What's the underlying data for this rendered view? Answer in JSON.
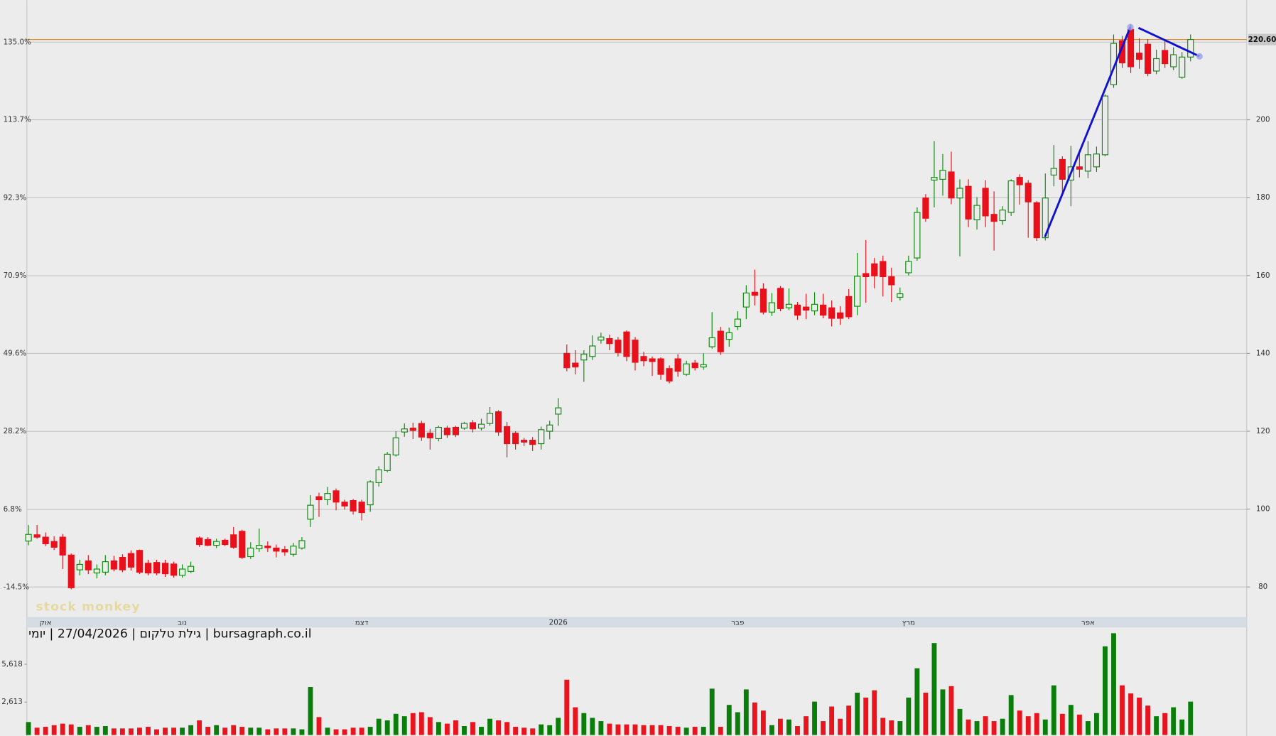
{
  "chart_data": {
    "type": "candlestick",
    "subtitle": "bursagraph.co.il | גילת טלקום | 27/04/2026 | יומי",
    "watermark": "stock monkey",
    "categories": [
      null,
      null,
      "אוק",
      null,
      null,
      null,
      null,
      null,
      null,
      null,
      null,
      null,
      null,
      null,
      null,
      null,
      null,
      null,
      "נוב",
      null,
      null,
      null,
      null,
      null,
      null,
      null,
      null,
      null,
      null,
      null,
      null,
      null,
      null,
      null,
      null,
      null,
      null,
      null,
      null,
      "דצמ",
      null,
      null,
      null,
      null,
      null,
      null,
      null,
      null,
      null,
      null,
      null,
      null,
      null,
      null,
      null,
      null,
      null,
      null,
      null,
      null,
      null,
      null,
      "2026",
      null,
      null,
      null,
      null,
      null,
      null,
      null,
      null,
      null,
      null,
      null,
      null,
      null,
      null,
      null,
      null,
      null,
      null,
      null,
      null,
      "פבר",
      null,
      null,
      null,
      null,
      null,
      null,
      null,
      null,
      null,
      null,
      null,
      null,
      null,
      null,
      null,
      null,
      null,
      null,
      null,
      "מרץ",
      null,
      null,
      null,
      null,
      null,
      null,
      null,
      null,
      null,
      null,
      null,
      null,
      null,
      null,
      null,
      null,
      null,
      null,
      null,
      null,
      "אפר",
      null,
      null,
      null,
      null,
      null,
      null,
      null,
      null,
      null,
      null,
      null,
      null
    ],
    "open": [
      91.8,
      93.4,
      92.8,
      91.7,
      92.8,
      88.2,
      84.4,
      86.7,
      83.6,
      83.8,
      86.7,
      87.6,
      88.6,
      89.4,
      86.1,
      86.3,
      86.1,
      85.9,
      83,
      84,
      92.6,
      92.2,
      90.7,
      92,
      93.4,
      94.3,
      87.8,
      89.8,
      90.5,
      90,
      89.6,
      88.4,
      90,
      97.4,
      103.2,
      102.4,
      104.7,
      101.8,
      102.2,
      101.8,
      101.1,
      106.8,
      109.9,
      113.9,
      119.8,
      120.8,
      122,
      119.5,
      118.1,
      120.8,
      121,
      120.8,
      122.2,
      120.8,
      122,
      125,
      121.2,
      119.5,
      117.7,
      117.7,
      116.8,
      120,
      124.4,
      140,
      137.5,
      138.3,
      139.2,
      143.4,
      143.8,
      143.4,
      145.5,
      143.4,
      139.2,
      138.6,
      138.6,
      136.1,
      138.6,
      134.6,
      137.5,
      136.5,
      141.7,
      145.7,
      143.6,
      146.9,
      151.9,
      155.7,
      156.5,
      150.6,
      156.7,
      151.7,
      152.4,
      151.9,
      150.9,
      152.4,
      151.7,
      150.4,
      154.6,
      152.1,
      160.5,
      163,
      163.6,
      159.7,
      154.4,
      160.7,
      164.5,
      179.9,
      184.5,
      184.7,
      186.6,
      179.9,
      182.9,
      174.3,
      182.4,
      175.7,
      174.1,
      176.2,
      185.2,
      183.7,
      178.7,
      169.7,
      185.8,
      189.8,
      184.5,
      187.9,
      186.8,
      187.9,
      191,
      209,
      220.3,
      223.2,
      217.1,
      219.4,
      212.5,
      217.8,
      213.6,
      210.9,
      216.1
    ],
    "high": [
      95.9,
      95.9,
      94,
      93,
      93.6,
      88.6,
      87,
      88.2,
      85.8,
      88.2,
      88,
      88.4,
      89.4,
      89.6,
      87,
      87,
      87,
      86.5,
      85.8,
      86.5,
      93,
      92.8,
      92.4,
      92.4,
      95.4,
      94.7,
      91.5,
      95,
      91.7,
      90.9,
      90.5,
      91.3,
      92.8,
      103.6,
      104.2,
      105.7,
      105.3,
      102.4,
      102.6,
      102.4,
      107.4,
      111,
      114.7,
      120,
      122,
      122.2,
      122.7,
      120.6,
      121.4,
      121.4,
      121.4,
      122.4,
      122.9,
      123.2,
      126.2,
      125.4,
      122.4,
      120,
      118.3,
      118.5,
      121.2,
      122.7,
      128.5,
      142.3,
      140.8,
      140.8,
      144.6,
      145.3,
      144.8,
      144.2,
      145.9,
      144.2,
      140.4,
      139.2,
      139,
      136.9,
      139.8,
      138.1,
      138.3,
      140,
      150.6,
      146.8,
      146.6,
      150.8,
      157.5,
      161.5,
      158,
      155.5,
      157.3,
      156.7,
      153.2,
      155.3,
      155.7,
      155.3,
      153.6,
      152.1,
      156.5,
      165.8,
      169.1,
      164.5,
      165.1,
      162,
      156.9,
      165.1,
      177.5,
      180.9,
      194.5,
      191.2,
      191.8,
      184.7,
      184.7,
      180.1,
      184.5,
      181.6,
      177.8,
      184.7,
      186,
      184.5,
      179.1,
      186.2,
      193.5,
      190.6,
      193.3,
      192.1,
      194.5,
      193.1,
      206.5,
      221.9,
      221.5,
      224.5,
      220.9,
      220.7,
      218,
      220.5,
      218.6,
      217.4,
      221.9
    ],
    "low": [
      90.7,
      92.4,
      90.5,
      89.5,
      84.6,
      79.4,
      83,
      83.3,
      82.2,
      83,
      84,
      83.8,
      84.2,
      83.3,
      83,
      83,
      82.6,
      82.4,
      82.4,
      83.6,
      90.3,
      90.5,
      90,
      90.5,
      89.8,
      87.2,
      87.2,
      89,
      89,
      87.6,
      88,
      87.8,
      89.6,
      95.4,
      98,
      101,
      99.7,
      99.9,
      98.6,
      97.1,
      99.3,
      105.8,
      109.5,
      113.5,
      118.6,
      118,
      117.5,
      115.3,
      117.4,
      118.3,
      118.5,
      120.4,
      119.7,
      120.2,
      121.4,
      118.8,
      113.3,
      115.3,
      116.2,
      114.9,
      115.3,
      117.9,
      121.4,
      135.4,
      134.6,
      132.7,
      138.3,
      142.5,
      140.8,
      139.2,
      138,
      135.6,
      136.7,
      134.2,
      133.2,
      132.3,
      134,
      134.2,
      135.6,
      135.8,
      141.2,
      139.6,
      141.7,
      146,
      148.8,
      152.3,
      150,
      149.6,
      150.8,
      151.1,
      148.6,
      148.8,
      149.8,
      149,
      146.9,
      147.3,
      148.8,
      149.8,
      153,
      156.7,
      154.6,
      153.2,
      153.6,
      160,
      163.8,
      173.8,
      177.5,
      180.5,
      178.3,
      164.9,
      172.4,
      171.8,
      172.4,
      166.4,
      173,
      175.3,
      178.2,
      169.7,
      168.9,
      169,
      182.9,
      181.2,
      177.8,
      185.2,
      185,
      186.6,
      190.6,
      208.2,
      213.3,
      212,
      213.1,
      211.2,
      211.7,
      213.3,
      212.7,
      210.5,
      215
    ],
    "close": [
      93.5,
      92.8,
      91.1,
      90.2,
      88.2,
      79.8,
      85.8,
      84.4,
      84.6,
      86.5,
      84.6,
      84.4,
      85.1,
      83.8,
      83.6,
      83.6,
      83.4,
      83,
      84.6,
      85.3,
      90.9,
      90.7,
      91.7,
      90.9,
      90.2,
      87.6,
      90,
      90.7,
      90.1,
      89.2,
      89,
      90.5,
      91.9,
      101,
      102.4,
      104,
      101.8,
      100.8,
      99.5,
      99.1,
      107,
      110.1,
      114.1,
      118.3,
      120.6,
      120.2,
      118.5,
      118.3,
      121,
      119.1,
      119.1,
      122,
      120.6,
      121.8,
      124.6,
      119.8,
      116.8,
      116.8,
      117.2,
      116.6,
      120.4,
      121.6,
      126,
      136.3,
      136.5,
      139.8,
      141.9,
      144.2,
      142.5,
      140.2,
      139.2,
      137.7,
      138.1,
      137.9,
      134.6,
      132.9,
      135.4,
      137.3,
      136.3,
      137.1,
      144,
      140.4,
      145.3,
      148.8,
      155.5,
      154.9,
      150.6,
      153,
      151.5,
      152.6,
      149.8,
      151.1,
      152.6,
      149.8,
      149,
      149,
      149.4,
      159.8,
      159.7,
      159.9,
      159.7,
      157.6,
      155.3,
      163.6,
      176.2,
      174.7,
      185.2,
      187,
      179.9,
      182.4,
      174.5,
      178,
      175.3,
      173.9,
      176.8,
      184.3,
      183.3,
      178.9,
      169.7,
      179.9,
      187.5,
      184.7,
      187.9,
      187.3,
      191,
      191.2,
      206.1,
      219.6,
      214.6,
      213.6,
      215.5,
      211.9,
      215.7,
      214.4,
      216.7,
      216.1,
      220.6
    ],
    "volume": [
      1030,
      580,
      650,
      780,
      900,
      840,
      650,
      780,
      650,
      710,
      520,
      520,
      520,
      580,
      650,
      450,
      580,
      580,
      580,
      780,
      1160,
      650,
      780,
      580,
      780,
      650,
      580,
      580,
      450,
      520,
      520,
      520,
      450,
      3810,
      1420,
      580,
      450,
      450,
      580,
      580,
      650,
      1290,
      1160,
      1680,
      1490,
      1740,
      1810,
      1420,
      1030,
      900,
      1160,
      710,
      1030,
      650,
      1290,
      1160,
      1030,
      650,
      580,
      520,
      840,
      780,
      1360,
      4390,
      2200,
      1740,
      1360,
      1100,
      900,
      840,
      840,
      840,
      780,
      780,
      780,
      710,
      650,
      580,
      650,
      650,
      3680,
      650,
      2390,
      1810,
      3620,
      2580,
      1940,
      780,
      1290,
      1230,
      710,
      1490,
      2650,
      1100,
      2260,
      1290,
      2330,
      3360,
      2970,
      3550,
      1360,
      1160,
      1100,
      2970,
      5300,
      3360,
      7300,
      3620,
      3880,
      2070,
      1230,
      1100,
      1490,
      1100,
      1290,
      3170,
      1940,
      1490,
      1740,
      1230,
      3940,
      1680,
      2390,
      1620,
      1100,
      1740,
      7040,
      8080,
      3940,
      3300,
      2970,
      2330,
      1490,
      1740,
      2200,
      1230,
      2650
    ],
    "up_color": "#0a8a0a",
    "down_color": "#e8101a",
    "volume_up_color": "#0a7d0a",
    "volume_down_color": "#e8141e",
    "ylim": [
      72.5,
      230.7
    ],
    "yticks": [
      80,
      100,
      120,
      140,
      160,
      180,
      200
    ],
    "y2lim": [
      -22.5,
      146.5
    ],
    "y2ticks": [
      {
        "value": 135.0,
        "label": "135.0%"
      },
      {
        "value": 113.7,
        "label": "113.7%"
      },
      {
        "value": 92.3,
        "label": "92.3%"
      },
      {
        "value": 70.9,
        "label": "70.9%"
      },
      {
        "value": 49.6,
        "label": "49.6%"
      },
      {
        "value": 28.2,
        "label": "28.2%"
      },
      {
        "value": 6.8,
        "label": "6.8%"
      },
      {
        "value": -14.5,
        "label": "-14.5%"
      }
    ],
    "volume_ylim": [
      0,
      8400
    ],
    "volume_yticks": [
      {
        "value": 5618,
        "label": "5,618"
      },
      {
        "value": 2613,
        "label": "2,613"
      }
    ],
    "last_price": {
      "value": 220.6,
      "label": "220.60"
    },
    "grid": true
  }
}
